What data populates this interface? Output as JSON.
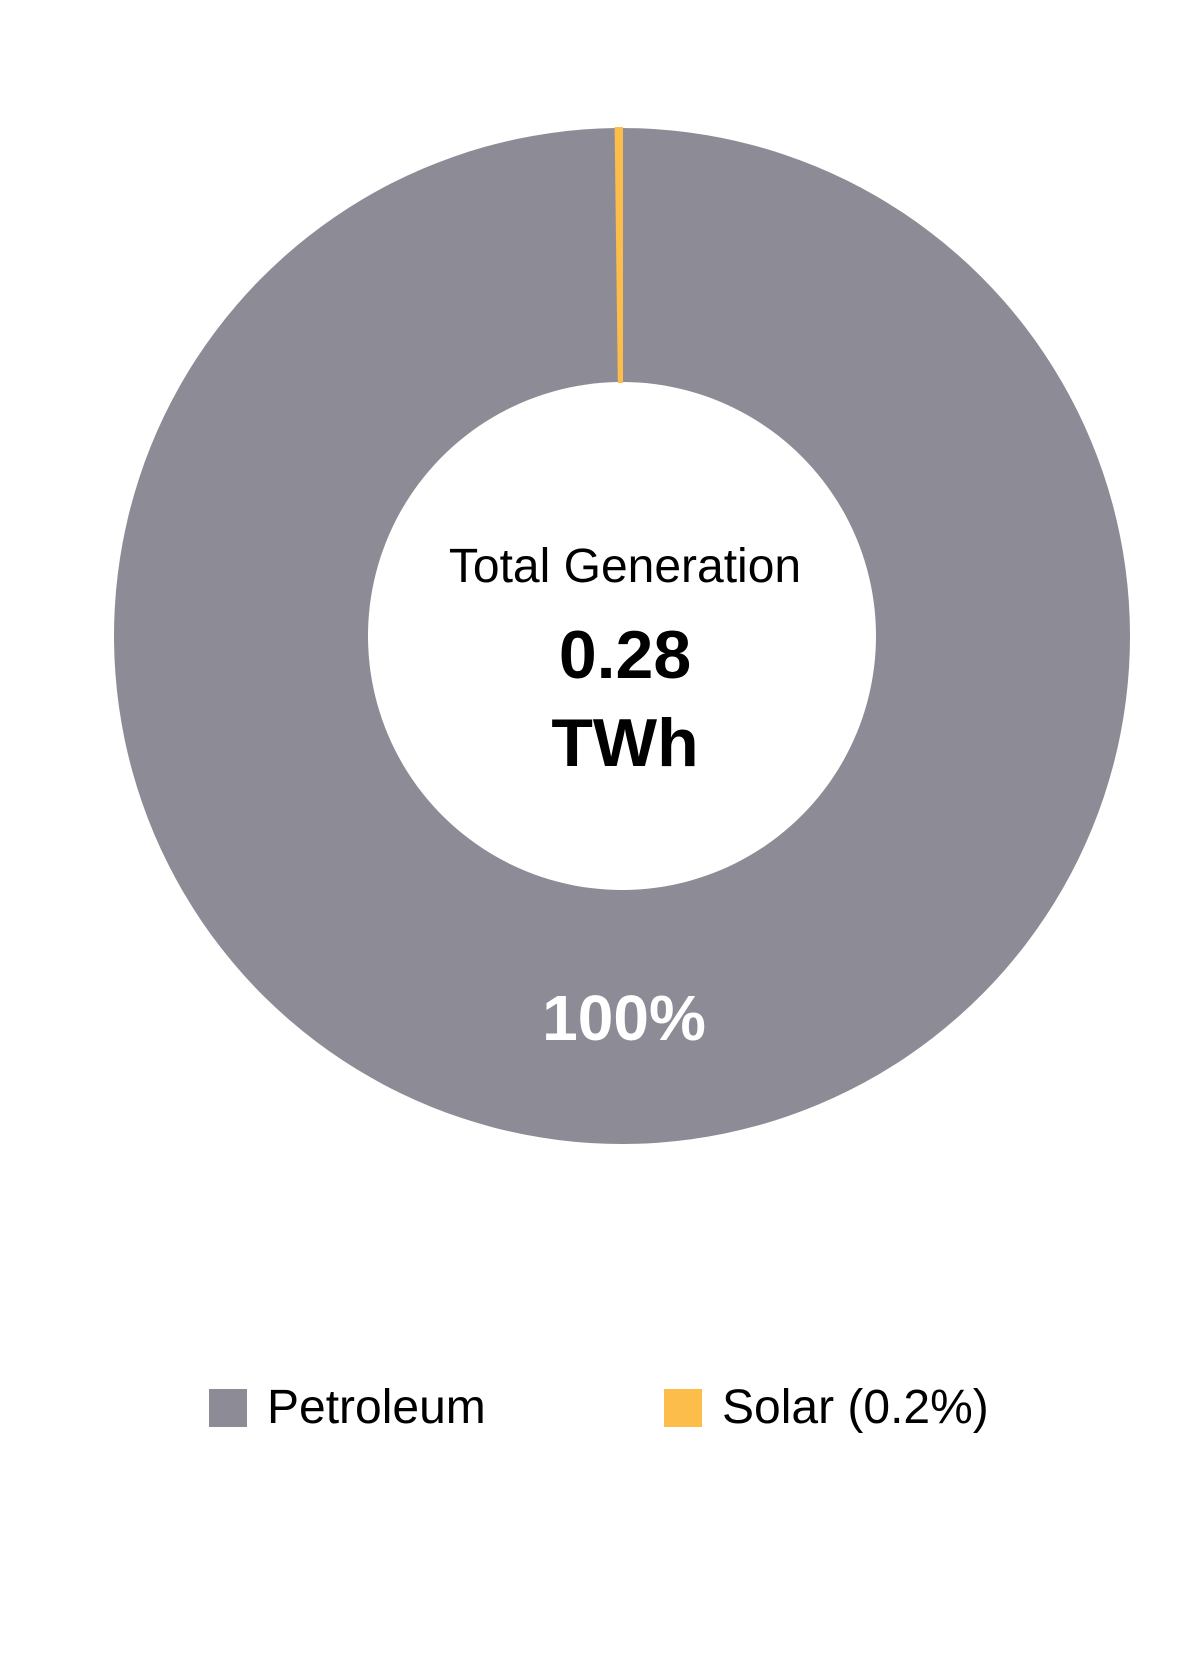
{
  "chart_data": {
    "type": "pie",
    "donut": true,
    "center_label": {
      "title": "Total Generation",
      "value": "0.28",
      "unit": "TWh"
    },
    "slices": [
      {
        "name": "Petroleum",
        "percent": 99.8,
        "color": "#8d8c96",
        "label": "100%"
      },
      {
        "name": "Solar",
        "percent": 0.2,
        "color": "#fdbd4b",
        "label": ""
      }
    ],
    "legend": {
      "placement": "bottom",
      "items": [
        "Petroleum",
        "Solar (0.2%)"
      ]
    }
  }
}
